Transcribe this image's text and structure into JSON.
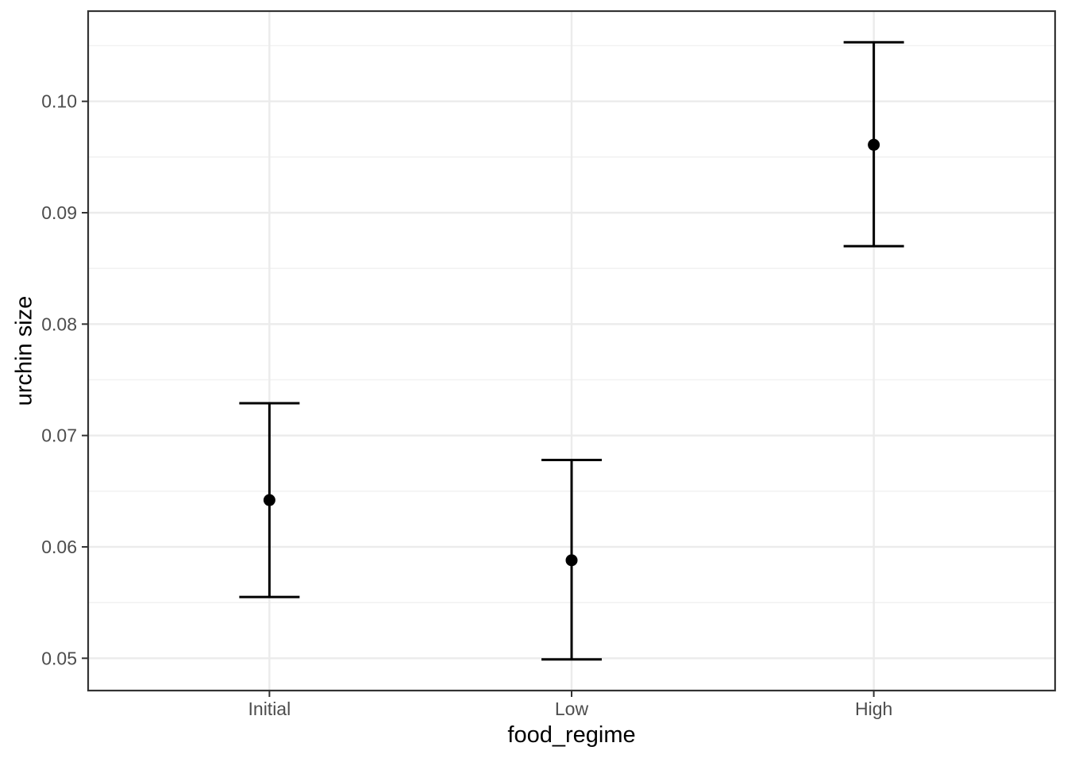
{
  "chart_data": {
    "type": "scatter",
    "geom": "point-with-errorbar",
    "title": "",
    "xlabel": "food_regime",
    "ylabel": "urchin size",
    "categories": [
      "Initial",
      "Low",
      "High"
    ],
    "points": [
      {
        "category": "Initial",
        "mean": 0.0642,
        "lower": 0.0555,
        "upper": 0.0729
      },
      {
        "category": "Low",
        "mean": 0.0588,
        "lower": 0.0499,
        "upper": 0.0678
      },
      {
        "category": "High",
        "mean": 0.0961,
        "lower": 0.087,
        "upper": 0.1053
      }
    ],
    "y_ticks": [
      0.05,
      0.06,
      0.07,
      0.08,
      0.09,
      0.1
    ],
    "y_minor_ticks": [
      0.055,
      0.065,
      0.075,
      0.085,
      0.095,
      0.105
    ],
    "ylim": [
      0.0471,
      0.1081
    ],
    "grid": true,
    "legend": "none"
  },
  "colors": {
    "background": "#ffffff",
    "panel_background": "#ffffff",
    "panel_border": "#333333",
    "grid_major": "#ebebeb",
    "grid_minor": "#f2f2f2",
    "tick_mark": "#333333",
    "tick_label": "#4d4d4d",
    "axis_title": "#000000",
    "data": "#000000"
  }
}
